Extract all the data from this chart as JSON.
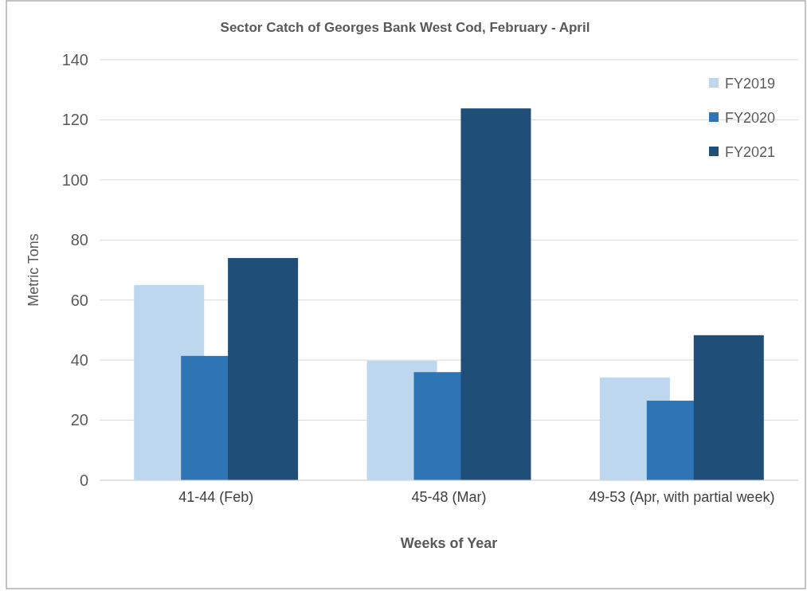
{
  "chart_data": {
    "type": "bar",
    "title": "Sector Catch of Georges Bank West Cod, February - April",
    "xlabel": "Weeks of Year",
    "ylabel": "Metric Tons",
    "categories": [
      "41-44 (Feb)",
      "45-48 (Mar)",
      "49-53 (Apr, with partial week)"
    ],
    "series": [
      {
        "name": "FY2019",
        "color": "#bdd7ee",
        "values": [
          65,
          39.8,
          34.2
        ]
      },
      {
        "name": "FY2020",
        "color": "#2e75b6",
        "values": [
          41.4,
          36,
          26.5
        ]
      },
      {
        "name": "FY2021",
        "color": "#1f4e79",
        "values": [
          74,
          123.8,
          48.3
        ]
      }
    ],
    "ylim": [
      0,
      140
    ],
    "yticks": [
      0,
      20,
      40,
      60,
      80,
      100,
      120,
      140
    ],
    "grid": "y",
    "legend": "top right"
  }
}
